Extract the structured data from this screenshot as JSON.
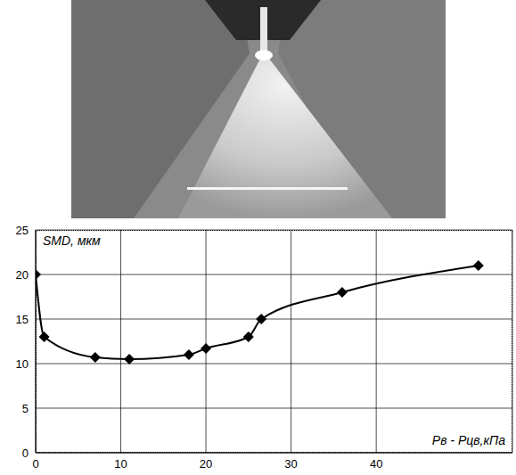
{
  "chart_data": {
    "type": "line",
    "x_label": "Pв - Pцв,кПа",
    "y_label": "SMD, мкм",
    "x": [
      0,
      1,
      7,
      11,
      18,
      20,
      25,
      26.5,
      36,
      52
    ],
    "values": [
      20,
      13,
      10.7,
      10.5,
      11,
      11.7,
      13,
      15,
      18,
      21
    ],
    "color": "#000000",
    "marker": "diamond",
    "line_style": "solid",
    "xlim": [
      0,
      56
    ],
    "xticks": [
      0,
      10,
      20,
      30,
      40
    ],
    "ylim": [
      0,
      25
    ],
    "yticks": [
      0,
      5,
      10,
      15,
      20,
      25
    ],
    "grid": true
  }
}
